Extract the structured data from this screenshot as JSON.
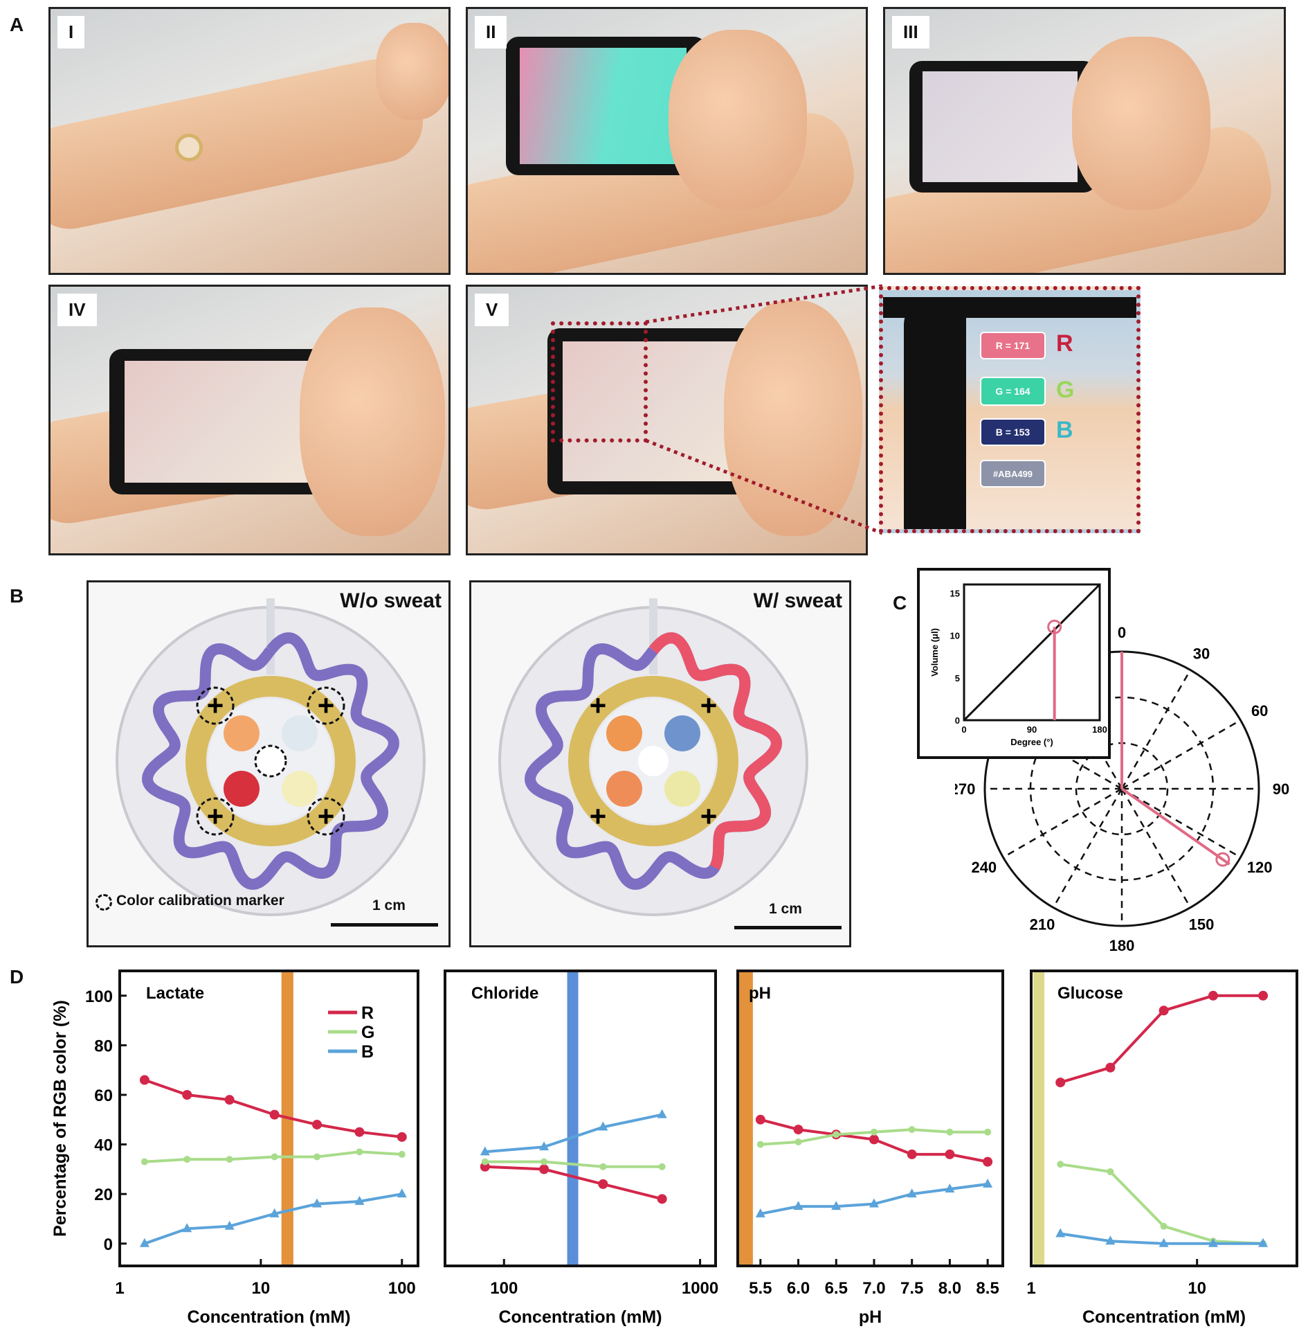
{
  "panel_labels": {
    "a": "A",
    "b": "B",
    "c": "C",
    "d": "D"
  },
  "panel_a": {
    "steps": [
      "I",
      "II",
      "III",
      "IV",
      "V"
    ],
    "readout": {
      "r": "R = 171",
      "g": "G = 164",
      "b": "B = 153",
      "hex": "#ABA499",
      "r_letter": "R",
      "g_letter": "G",
      "b_letter": "B"
    },
    "colors": {
      "r": "#e8728a",
      "g": "#3bd3a6",
      "b": "#24306f",
      "hex": "#8d93a8"
    }
  },
  "panel_b": {
    "left_title": "W/o sweat",
    "right_title": "W/ sweat",
    "legend": "Color calibration marker",
    "legend_line2": "marker",
    "scale_bar": "1 cm",
    "colors": {
      "channel": "#7e6fc2",
      "sweat": "#e9546b",
      "ring": "#d4b03c"
    }
  },
  "chart_data": [
    {
      "type": "line",
      "id": "inset-volume",
      "xlabel": "Degree (°)",
      "ylabel": "Volume (μl)",
      "xlim": [
        0,
        180
      ],
      "ylim": [
        0,
        16
      ],
      "xticks": [
        0,
        90,
        180
      ],
      "yticks": [
        0,
        5,
        10,
        15
      ],
      "series": [
        {
          "x": [
            0,
            180
          ],
          "y": [
            0,
            16
          ]
        }
      ],
      "highlight": {
        "x": 120,
        "y": 11,
        "color": "#e06a85"
      }
    },
    {
      "type": "polar",
      "id": "polar-angle",
      "angle_ticks": [
        0,
        30,
        60,
        90,
        120,
        150,
        180,
        210,
        240,
        270
      ],
      "highlight_angle": 125,
      "grid": "dashed",
      "color": "#e06a85"
    },
    {
      "type": "line",
      "id": "lactate",
      "title": "Lactate",
      "xlabel": "Concentration (mM)",
      "ylabel": "Percentage of RGB color (%)",
      "xscale": "log",
      "xlim": [
        1,
        130
      ],
      "ylim": [
        -9,
        110
      ],
      "xticks": [
        1,
        10,
        100
      ],
      "yticks": [
        0,
        20,
        40,
        60,
        80,
        100
      ],
      "band": [
        14,
        17
      ],
      "band_color": "#e3913a",
      "legend": "top-right",
      "x": [
        1.5,
        3,
        6,
        12.5,
        25,
        50,
        100
      ],
      "series": [
        {
          "name": "R",
          "color": "#d3274a",
          "values": [
            66,
            60,
            58,
            52,
            48,
            45,
            43
          ]
        },
        {
          "name": "G",
          "color": "#a9dc8a",
          "values": [
            33,
            34,
            34,
            35,
            35,
            37,
            36
          ]
        },
        {
          "name": "B",
          "color": "#5ba3da",
          "values": [
            0,
            6,
            7,
            12,
            16,
            17,
            20
          ]
        }
      ]
    },
    {
      "type": "line",
      "id": "chloride",
      "title": "Chloride",
      "xlabel": "Concentration (mM)",
      "xscale": "log",
      "xlim": [
        50,
        1200
      ],
      "ylim": [
        -9,
        110
      ],
      "xticks": [
        100,
        1000
      ],
      "band": [
        210,
        235
      ],
      "band_color": "#5b8ed8",
      "x": [
        80,
        160,
        320,
        640
      ],
      "series": [
        {
          "name": "R",
          "color": "#d3274a",
          "values": [
            31,
            30,
            24,
            18
          ]
        },
        {
          "name": "G",
          "color": "#a9dc8a",
          "values": [
            33,
            33,
            31,
            31
          ]
        },
        {
          "name": "B",
          "color": "#5ba3da",
          "values": [
            37,
            39,
            47,
            52
          ]
        }
      ]
    },
    {
      "type": "line",
      "id": "ph",
      "title": "pH",
      "xlabel": "pH",
      "xscale": "linear",
      "xlim": [
        5.2,
        8.7
      ],
      "ylim": [
        -9,
        110
      ],
      "xticks": [
        5.5,
        6.0,
        6.5,
        7.0,
        7.5,
        8.0,
        8.5
      ],
      "band": [
        5.2,
        5.4
      ],
      "band_color": "#e3913a",
      "x": [
        5.5,
        6.0,
        6.5,
        7.0,
        7.5,
        8.0,
        8.5
      ],
      "series": [
        {
          "name": "R",
          "color": "#d3274a",
          "values": [
            50,
            46,
            44,
            42,
            36,
            36,
            33
          ]
        },
        {
          "name": "G",
          "color": "#a9dc8a",
          "values": [
            40,
            41,
            44,
            45,
            46,
            45,
            45
          ]
        },
        {
          "name": "B",
          "color": "#5ba3da",
          "values": [
            12,
            15,
            15,
            16,
            20,
            22,
            24
          ]
        }
      ]
    },
    {
      "type": "line",
      "id": "glucose",
      "title": "Glucose",
      "xlabel": "Concentration (mM)",
      "xscale": "log",
      "xlim": [
        1,
        40
      ],
      "ylim": [
        -9,
        110
      ],
      "xticks": [
        1,
        10
      ],
      "band": [
        1.03,
        1.15
      ],
      "band_color": "#dcd98a",
      "x": [
        1.5,
        3,
        6.3,
        12.5,
        25
      ],
      "series": [
        {
          "name": "R",
          "color": "#d3274a",
          "values": [
            65,
            71,
            94,
            100,
            100
          ]
        },
        {
          "name": "G",
          "color": "#a9dc8a",
          "values": [
            32,
            29,
            7,
            1,
            0
          ]
        },
        {
          "name": "B",
          "color": "#5ba3da",
          "values": [
            4,
            1,
            0,
            0,
            0
          ]
        }
      ]
    }
  ]
}
